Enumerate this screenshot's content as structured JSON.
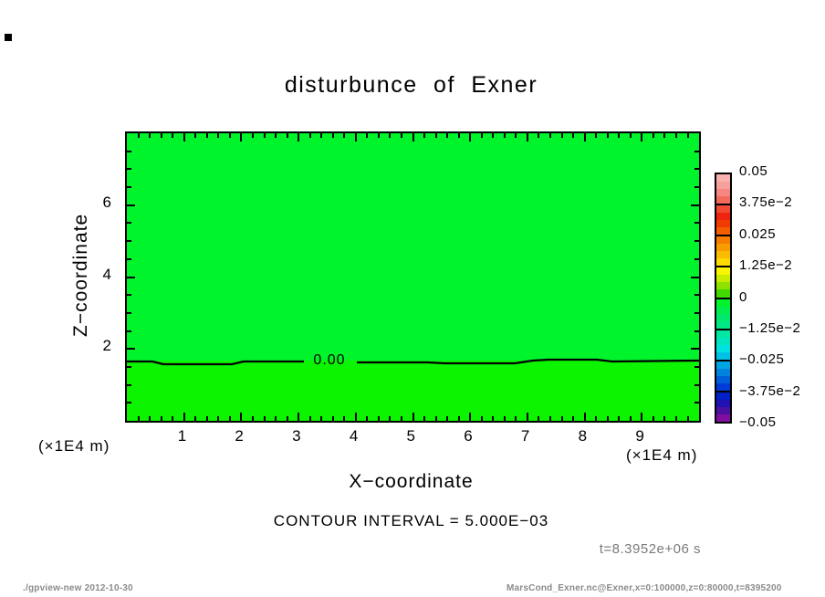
{
  "title": "disturbunce of Exner",
  "axes": {
    "x": {
      "label": "X−coordinate",
      "unit": "(×1E4 m)"
    },
    "z": {
      "label": "Z−coordinate",
      "unit": "(×1E4 m)"
    }
  },
  "contour_note": "CONTOUR INTERVAL = 5.000E−03",
  "time_label": "t=8.3952e+06 s",
  "contour_label": "0.00",
  "footer": {
    "left": "./gpview-new  2012-10-30",
    "right": "MarsCond_Exner.nc@Exner,x=0:100000,z=0:80000,t=8395200"
  },
  "colors": {
    "fill_above_contour": "#00f42c",
    "fill_below_contour": "#0cf400",
    "line": "#000000",
    "muted_text": "#7a7a7a",
    "footer_text": "#8a8a8a"
  },
  "chart_data": {
    "type": "contour",
    "title": "disturbunce of Exner",
    "xlabel": "X−coordinate",
    "x_unit_factor": "(×1E4 m)",
    "xlim": [
      0,
      10
    ],
    "x_major_ticks": [
      1,
      2,
      3,
      4,
      5,
      6,
      7,
      8,
      9
    ],
    "x_minor_step": 0.2,
    "ylabel": "Z−coordinate",
    "y_unit_factor": "(×1E4 m)",
    "ylim": [
      0,
      8
    ],
    "y_major_ticks": [
      2,
      4,
      6
    ],
    "y_minor_step": 0.5,
    "grid": false,
    "contour_interval": 0.005,
    "contours": [
      {
        "level": 0.0,
        "label": "0.00",
        "z_position_1e4m": 1.67,
        "shape": "nearly horizontal line spanning full x range"
      }
    ],
    "field_description": "Exner function disturbance, everywhere between -0.005 and 0.005; uniform green fill with single 0.00 contour near z=1.7e4 m",
    "colorbar": {
      "range": [
        -0.05,
        0.05
      ],
      "position": "right",
      "tick_labels": [
        "0.05",
        "3.75e−2",
        "0.025",
        "1.25e−2",
        "0",
        "−1.25e−2",
        "−0.025",
        "−3.75e−2",
        "−0.05"
      ],
      "segments": [
        [
          "#f8b0b0",
          "#f79f9a",
          "#f58680",
          "#f26a5c"
        ],
        [
          "#f04a34",
          "#ee2410",
          "#f03c00",
          "#f45e00"
        ],
        [
          "#f67d00",
          "#f89c00",
          "#fbbb00",
          "#fdda00"
        ],
        [
          "#f9f400",
          "#c9ec00",
          "#8fe200",
          "#42d800"
        ],
        [
          "#00f42c",
          "#00ee50",
          "#00e96c",
          "#00e786"
        ],
        [
          "#00e7a2",
          "#00e6c0",
          "#00e1e1",
          "#00c2e6"
        ],
        [
          "#00a4e2",
          "#0082de",
          "#005eda",
          "#003ad6"
        ],
        [
          "#0020c8",
          "#2012b2",
          "#4c10a0",
          "#800fa0"
        ]
      ]
    }
  }
}
